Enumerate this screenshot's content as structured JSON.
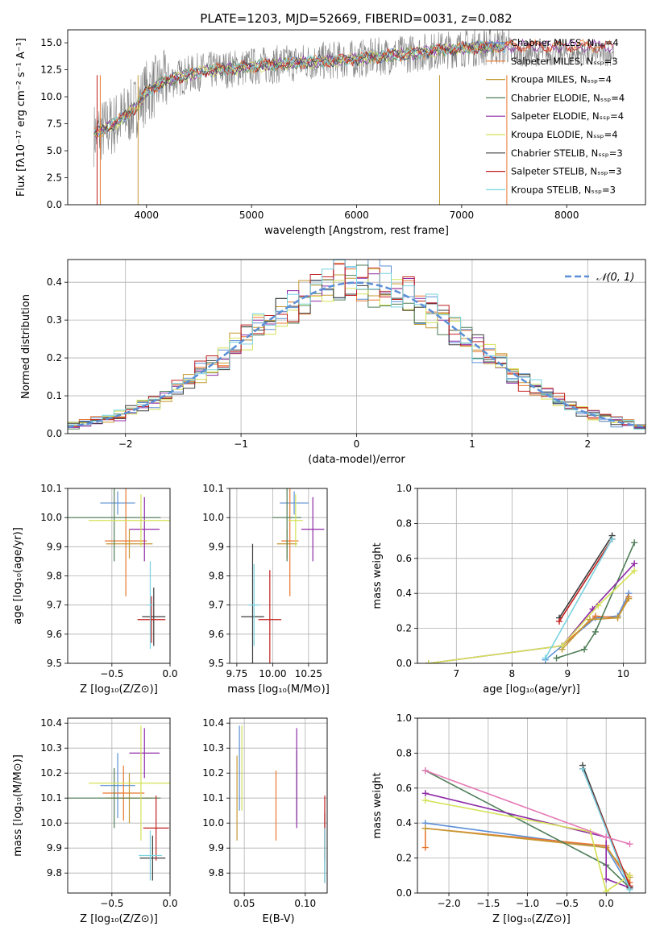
{
  "chart_data": [
    {
      "type": "line",
      "title": "PLATE=1203, MJD=52669, FIBERID=0031, z=0.082",
      "xlabel": "wavelength [Angstrom, rest frame]",
      "ylabel": "Flux [fλ10⁻¹⁷ erg cm⁻² s⁻¹ A⁻¹]",
      "xlim": [
        3250,
        8750
      ],
      "ylim": [
        0,
        16.2
      ],
      "xticks": [
        4000,
        5000,
        6000,
        7000,
        8000
      ],
      "yticks": [
        0.0,
        2.5,
        5.0,
        7.5,
        10.0,
        12.5,
        15.0
      ],
      "data_color": "#808080",
      "legend_position": "upper right",
      "series": [
        {
          "name": "Chabrier MILES, N_SSP=4",
          "color": "#5b8fd6"
        },
        {
          "name": "Salpeter MILES, N_SSP=3",
          "color": "#e8772e"
        },
        {
          "name": "Kroupa MILES, N_SSP=4",
          "color": "#c69a34"
        },
        {
          "name": "Chabrier ELODIE, N_SSP=4",
          "color": "#4e7d57"
        },
        {
          "name": "Salpeter ELODIE, N_SSP=4",
          "color": "#8e2aa6"
        },
        {
          "name": "Kroupa ELODIE, N_SSP=4",
          "color": "#d4e156"
        },
        {
          "name": "Chabrier STELIB, N_SSP=3",
          "color": "#3b3b3b"
        },
        {
          "name": "Salpeter STELIB, N_SSP=3",
          "color": "#c21e1e"
        },
        {
          "name": "Kroupa STELIB, N_SSP=3",
          "color": "#77d3e0"
        }
      ],
      "model_trend": {
        "x": [
          3500,
          3700,
          3900,
          4000,
          4200,
          4500,
          5000,
          5500,
          6000,
          6500,
          7000,
          7400
        ],
        "y": [
          6.5,
          7.5,
          9.0,
          10.5,
          11.5,
          12.3,
          12.8,
          13.2,
          13.5,
          14.0,
          14.5,
          14.7
        ]
      }
    },
    {
      "type": "line",
      "xlabel": "(data-model)/error",
      "ylabel": "Normed distribution",
      "xlim": [
        -2.5,
        2.5
      ],
      "ylim": [
        0,
        0.46
      ],
      "xticks": [
        -2,
        -1,
        0,
        1,
        2
      ],
      "yticks": [
        0.0,
        0.1,
        0.2,
        0.3,
        0.4
      ],
      "legend": "𝒩(0, 1)",
      "reference_curve": "normal(0,1)",
      "bins": {
        "start": -2.5,
        "step": 0.1
      }
    },
    {
      "type": "scatter",
      "xlabel": "Z [log₁₀(Z/Z⊙)]",
      "ylabel": "age  [log₁₀(age/yr)]",
      "xlim": [
        -0.88,
        0.0
      ],
      "ylim": [
        9.5,
        10.1
      ],
      "xticks": [
        -0.5,
        0.0
      ],
      "yticks": [
        9.5,
        9.6,
        9.7,
        9.8,
        9.9,
        10.0,
        10.1
      ],
      "points": [
        {
          "x": -0.45,
          "y": 10.05,
          "xerr": 0.15,
          "yerr": 0.04
        },
        {
          "x": -0.38,
          "y": 9.92,
          "xerr": 0.18,
          "yerr": 0.19
        },
        {
          "x": -0.35,
          "y": 9.91,
          "xerr": 0.2,
          "yerr": 0.05
        },
        {
          "x": -0.48,
          "y": 10.0,
          "xerr": 0.4,
          "yerr": 0.15
        },
        {
          "x": -0.22,
          "y": 9.96,
          "xerr": 0.13,
          "yerr": 0.11
        },
        {
          "x": -0.25,
          "y": 9.99,
          "xerr": 0.45,
          "yerr": 0.09
        },
        {
          "x": -0.14,
          "y": 9.66,
          "xerr": 0.1,
          "yerr": 0.1
        },
        {
          "x": -0.16,
          "y": 9.65,
          "xerr": 0.12,
          "yerr": 0.08
        },
        {
          "x": -0.17,
          "y": 9.7,
          "xerr": 0.02,
          "yerr": 0.15
        }
      ]
    },
    {
      "type": "scatter",
      "xlabel": "mass [log₁₀(M/M⊙)]",
      "xlim": [
        9.7,
        10.38
      ],
      "ylim": [
        9.5,
        10.1
      ],
      "xticks": [
        9.75,
        10.0,
        10.25
      ],
      "yticks": [
        9.5,
        9.6,
        9.7,
        9.8,
        9.9,
        10.0,
        10.1
      ],
      "points": [
        {
          "x": 10.15,
          "y": 10.05,
          "xerr": 0.1,
          "yerr": 0.04
        },
        {
          "x": 10.12,
          "y": 9.92,
          "xerr": 0.06,
          "yerr": 0.19
        },
        {
          "x": 10.1,
          "y": 9.91,
          "xerr": 0.07,
          "yerr": 0.05
        },
        {
          "x": 10.1,
          "y": 10.0,
          "xerr": 0.1,
          "yerr": 0.15
        },
        {
          "x": 10.28,
          "y": 9.96,
          "xerr": 0.08,
          "yerr": 0.11
        },
        {
          "x": 10.16,
          "y": 9.99,
          "xerr": 0.05,
          "yerr": 0.09
        },
        {
          "x": 9.86,
          "y": 9.66,
          "xerr": 0.08,
          "yerr": 0.25
        },
        {
          "x": 9.98,
          "y": 9.65,
          "xerr": 0.08,
          "yerr": 0.17
        },
        {
          "x": 9.87,
          "y": 9.7,
          "xerr": 0.04,
          "yerr": 0.14
        }
      ]
    },
    {
      "type": "line",
      "xlabel": "age  [log₁₀(age/yr)]",
      "ylabel": "mass weight",
      "xlim": [
        6.3,
        10.4
      ],
      "ylim": [
        0,
        1.0
      ],
      "xticks": [
        7,
        8,
        9,
        10
      ],
      "yticks": [
        0.0,
        0.2,
        0.4,
        0.6,
        0.8,
        1.0
      ],
      "series": [
        {
          "name": "Chabrier MILES",
          "x": [
            8.6,
            8.9,
            9.5,
            9.9,
            10.1
          ],
          "y": [
            0.02,
            0.1,
            0.26,
            0.27,
            0.4
          ]
        },
        {
          "name": "Salpeter MILES",
          "x": [
            8.9,
            9.5,
            9.9,
            10.1
          ],
          "y": [
            0.1,
            0.27,
            0.26,
            0.38
          ]
        },
        {
          "name": "Kroupa MILES",
          "x": [
            8.9,
            9.4,
            9.9,
            10.1
          ],
          "y": [
            0.08,
            0.25,
            0.26,
            0.37
          ]
        },
        {
          "name": "Chabrier ELODIE",
          "x": [
            8.8,
            9.3,
            9.5,
            10.2
          ],
          "y": [
            0.03,
            0.08,
            0.18,
            0.69
          ]
        },
        {
          "name": "Salpeter ELODIE",
          "x": [
            6.5,
            8.9,
            9.45,
            10.2
          ],
          "y": [
            0.0,
            0.1,
            0.31,
            0.57
          ]
        },
        {
          "name": "Kroupa ELODIE",
          "x": [
            6.5,
            8.9,
            9.55,
            10.2
          ],
          "y": [
            0.0,
            0.1,
            0.33,
            0.53
          ]
        },
        {
          "name": "Chabrier STELIB",
          "x": [
            8.85,
            9.8
          ],
          "y": [
            0.26,
            0.73
          ]
        },
        {
          "name": "Salpeter STELIB",
          "x": [
            8.85,
            9.8
          ],
          "y": [
            0.24,
            0.71
          ]
        },
        {
          "name": "Kroupa STELIB",
          "x": [
            8.6,
            9.8
          ],
          "y": [
            0.03,
            0.71
          ]
        }
      ]
    },
    {
      "type": "scatter",
      "xlabel": "Z [log₁₀(Z/Z⊙)]",
      "ylabel": "mass [log₁₀(M/M⊙)]",
      "xlim": [
        -0.88,
        0.0
      ],
      "ylim": [
        9.72,
        10.42
      ],
      "xticks": [
        -0.5,
        0.0
      ],
      "yticks": [
        9.8,
        9.9,
        10.0,
        10.1,
        10.2,
        10.3,
        10.4
      ],
      "points": [
        {
          "x": -0.45,
          "y": 10.15,
          "xerr": 0.15,
          "yerr": 0.13
        },
        {
          "x": -0.4,
          "y": 10.12,
          "xerr": 0.18,
          "yerr": 0.11
        },
        {
          "x": -0.35,
          "y": 10.1,
          "xerr": 0.2,
          "yerr": 0.1
        },
        {
          "x": -0.48,
          "y": 10.1,
          "xerr": 0.4,
          "yerr": 0.12
        },
        {
          "x": -0.22,
          "y": 10.28,
          "xerr": 0.13,
          "yerr": 0.1
        },
        {
          "x": -0.25,
          "y": 10.16,
          "xerr": 0.45,
          "yerr": 0.23
        },
        {
          "x": -0.15,
          "y": 9.86,
          "xerr": 0.11,
          "yerr": 0.09
        },
        {
          "x": -0.12,
          "y": 9.98,
          "xerr": 0.11,
          "yerr": 0.13
        },
        {
          "x": -0.17,
          "y": 9.87,
          "xerr": 0.1,
          "yerr": 0.1
        }
      ]
    },
    {
      "type": "scatter",
      "xlabel": "E(B-V)",
      "xlim": [
        0.038,
        0.118
      ],
      "ylim": [
        9.72,
        10.42
      ],
      "xticks": [
        0.05,
        0.1
      ],
      "yticks": [
        9.8,
        9.9,
        10.0,
        10.1,
        10.2,
        10.3,
        10.4
      ],
      "points": [
        {
          "x": 0.046,
          "y": 10.22,
          "yerr": 0.17
        },
        {
          "x": 0.076,
          "y": 10.07,
          "yerr": 0.14
        },
        {
          "x": 0.044,
          "y": 10.1,
          "yerr": 0.17
        },
        {
          "x": 0.093,
          "y": 10.15,
          "yerr": 0.14
        },
        {
          "x": 0.093,
          "y": 10.18,
          "yerr": 0.2
        },
        {
          "x": 0.048,
          "y": 10.22,
          "yerr": 0.17
        },
        {
          "x": 0.116,
          "y": 9.9,
          "yerr": 0.14
        },
        {
          "x": 0.116,
          "y": 9.98,
          "yerr": 0.13
        },
        {
          "x": 0.116,
          "y": 9.87,
          "yerr": 0.11
        }
      ]
    },
    {
      "type": "line",
      "xlabel": "Z [log₁₀(Z/Z⊙)]",
      "ylabel": "mass weight",
      "xlim": [
        -2.4,
        0.5
      ],
      "ylim": [
        0,
        1.0
      ],
      "xticks": [
        -2.0,
        -1.5,
        -1.0,
        -0.5,
        0.0
      ],
      "yticks": [
        0.0,
        0.2,
        0.4,
        0.6,
        0.8,
        1.0
      ],
      "series": [
        {
          "name": "Chabrier MILES",
          "x": [
            -2.3,
            0.0,
            0.3
          ],
          "y": [
            0.4,
            0.26,
            0.03
          ]
        },
        {
          "name": "Salpeter MILES",
          "x": [
            -2.3,
            -2.3,
            0.0,
            0.3,
            0.3
          ],
          "y": [
            0.26,
            0.37,
            0.27,
            0.06,
            0.1
          ]
        },
        {
          "name": "Kroupa MILES",
          "x": [
            -2.3,
            0.0,
            0.3
          ],
          "y": [
            0.37,
            0.26,
            0.09
          ]
        },
        {
          "name": "Chabrier ELODIE",
          "x": [
            -2.3,
            0.0,
            0.3
          ],
          "y": [
            0.7,
            0.16,
            0.03
          ]
        },
        {
          "name": "Salpeter ELODIE",
          "x": [
            -2.3,
            0.0,
            0.0,
            0.3
          ],
          "y": [
            0.57,
            0.32,
            0.08,
            0.03
          ]
        },
        {
          "name": "Kroupa ELODIE",
          "x": [
            -2.3,
            -0.2,
            0.0,
            0.3
          ],
          "y": [
            0.53,
            0.35,
            0.01,
            0.1
          ]
        },
        {
          "name": "Chabrier STELIB",
          "x": [
            -0.3,
            0.3
          ],
          "y": [
            0.73,
            0.03
          ]
        },
        {
          "name": "Salpeter STELIB",
          "x": [
            -0.3,
            0.3
          ],
          "y": [
            0.71,
            0.04
          ]
        },
        {
          "name": "Kroupa STELIB",
          "x": [
            -0.3,
            0.3
          ],
          "y": [
            0.71,
            0.02
          ]
        },
        {
          "name": "Kroupa ELODIE pink",
          "x": [
            -2.3,
            0.0,
            0.3
          ],
          "y": [
            0.7,
            0.32,
            0.28
          ]
        }
      ]
    }
  ]
}
